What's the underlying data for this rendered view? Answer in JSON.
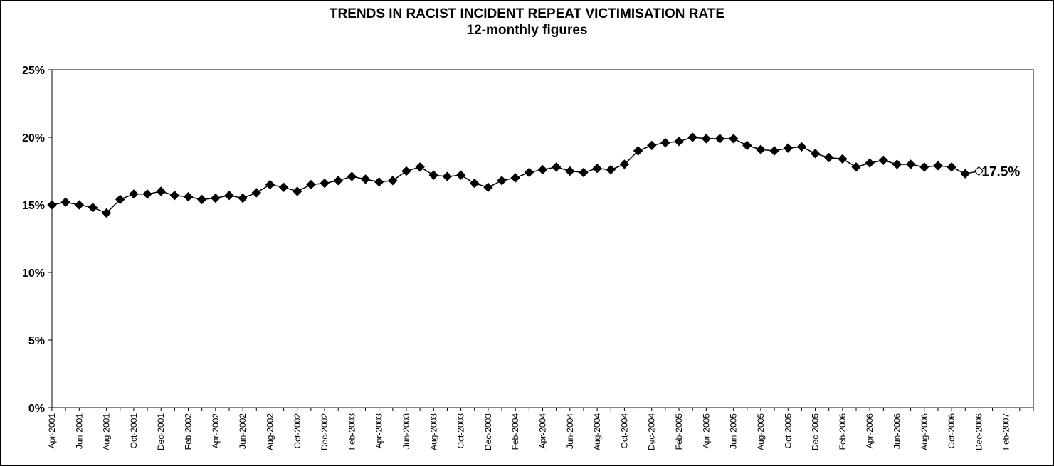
{
  "chart_data": {
    "type": "line",
    "title": "TRENDS IN RACIST INCIDENT REPEAT VICTIMISATION RATE",
    "subtitle": "12-monthly figures",
    "xlabel": "",
    "ylabel": "",
    "ylim": [
      0,
      25
    ],
    "y_ticks": [
      "0%",
      "5%",
      "10%",
      "15%",
      "20%",
      "25%"
    ],
    "x_tick_labels": [
      "Apr-2001",
      "Jun-2001",
      "Aug-2001",
      "Oct-2001",
      "Dec-2001",
      "Feb-2002",
      "Apr-2002",
      "Jun-2002",
      "Aug-2002",
      "Oct-2002",
      "Dec-2002",
      "Feb-2003",
      "Apr-2003",
      "Jun-2003",
      "Aug-2003",
      "Oct-2003",
      "Dec-2003",
      "Feb-2004",
      "Apr-2004",
      "Jun-2004",
      "Aug-2004",
      "Oct-2004",
      "Dec-2004",
      "Feb-2005",
      "Apr-2005",
      "Jun-2005",
      "Aug-2005",
      "Oct-2005",
      "Dec-2005",
      "Feb-2006",
      "Apr-2006",
      "Jun-2006",
      "Aug-2006",
      "Oct-2006",
      "Dec-2006",
      "Feb-2007"
    ],
    "grid": false,
    "legend": "none",
    "line_color": "#000000",
    "marker": "diamond",
    "series": [
      {
        "values": [
          15.0,
          15.2,
          15.0,
          14.8,
          14.4,
          15.4,
          15.8,
          15.8,
          16.0,
          15.7,
          15.6,
          15.4,
          15.5,
          15.7,
          15.5,
          15.9,
          16.5,
          16.3,
          16.0,
          16.5,
          16.6,
          16.8,
          17.1,
          16.9,
          16.7,
          16.8,
          17.5,
          17.8,
          17.2,
          17.1,
          17.2,
          16.6,
          16.3,
          16.8,
          17.0,
          17.4,
          17.6,
          17.8,
          17.5,
          17.4,
          17.7,
          17.6,
          18.0,
          19.0,
          19.4,
          19.6,
          19.7,
          20.0,
          19.9,
          19.9,
          19.9,
          19.4,
          19.1,
          19.0,
          19.2,
          19.3,
          18.8,
          18.5,
          18.4,
          17.8,
          18.1,
          18.3,
          18.0,
          18.0,
          17.8,
          17.9,
          17.8,
          17.3,
          17.5
        ]
      }
    ],
    "data_label": "17.5%"
  }
}
